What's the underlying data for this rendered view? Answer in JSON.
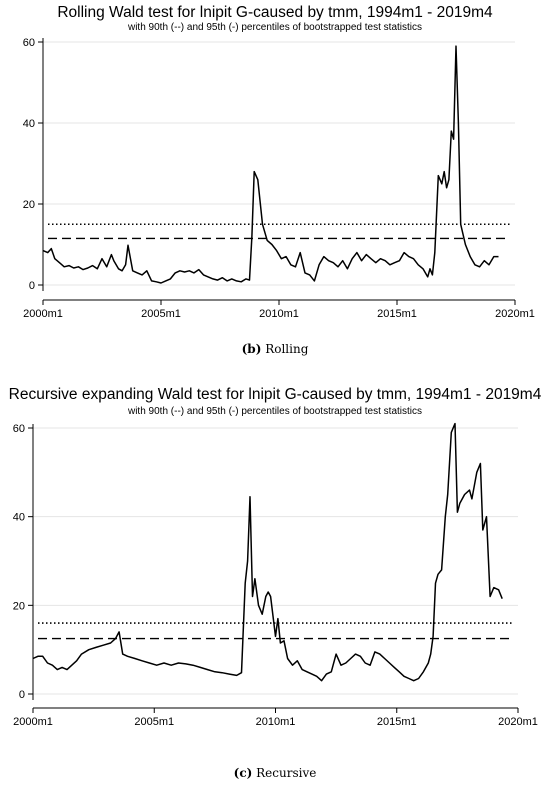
{
  "chart_data": [
    {
      "type": "line",
      "title": "Rolling Wald test for lnipit G-caused by tmm, 1994m1 - 2019m4",
      "subtitle": "with 90th (--) and 95th (-) percentiles of bootstrapped test statistics",
      "caption_label": "(b)",
      "caption_text": " Rolling",
      "xlim": [
        2000.0,
        2020.0
      ],
      "ylim": [
        0,
        60
      ],
      "xticks": [
        {
          "v": 2000.0,
          "label": "2000m1"
        },
        {
          "v": 2005.0,
          "label": "2005m1"
        },
        {
          "v": 2010.0,
          "label": "2010m1"
        },
        {
          "v": 2015.0,
          "label": "2015m1"
        },
        {
          "v": 2020.0,
          "label": "2020m1"
        }
      ],
      "yticks": [
        {
          "v": 0,
          "label": "0"
        },
        {
          "v": 20,
          "label": "20"
        },
        {
          "v": 40,
          "label": "40"
        },
        {
          "v": 60,
          "label": "60"
        }
      ],
      "grid": true,
      "thresholds": [
        {
          "value": 15.0,
          "style": "dotted"
        },
        {
          "value": 11.5,
          "style": "dashed"
        }
      ],
      "series": [
        {
          "x": [
            2000.0,
            2000.2,
            2000.35,
            2000.5,
            2000.7,
            2000.9,
            2001.1,
            2001.3,
            2001.5,
            2001.7,
            2001.9,
            2002.1,
            2002.3,
            2002.5,
            2002.7,
            2002.9,
            2003.0,
            2003.2,
            2003.35,
            2003.5,
            2003.6,
            2003.8,
            2004.0,
            2004.2,
            2004.4,
            2004.6,
            2004.8,
            2005.0,
            2005.2,
            2005.4,
            2005.6,
            2005.8,
            2006.0,
            2006.2,
            2006.4,
            2006.6,
            2006.8,
            2007.0,
            2007.2,
            2007.4,
            2007.6,
            2007.8,
            2008.0,
            2008.2,
            2008.4,
            2008.6,
            2008.75,
            2008.85,
            2008.95,
            2009.1,
            2009.3,
            2009.5,
            2009.7,
            2009.9,
            2010.1,
            2010.3,
            2010.5,
            2010.7,
            2010.9,
            2011.1,
            2011.3,
            2011.5,
            2011.7,
            2011.9,
            2012.1,
            2012.3,
            2012.5,
            2012.7,
            2012.9,
            2013.1,
            2013.3,
            2013.5,
            2013.7,
            2013.9,
            2014.1,
            2014.3,
            2014.5,
            2014.7,
            2014.9,
            2015.1,
            2015.3,
            2015.5,
            2015.7,
            2015.9,
            2016.1,
            2016.3,
            2016.4,
            2016.5,
            2016.6,
            2016.75,
            2016.9,
            2017.0,
            2017.1,
            2017.2,
            2017.3,
            2017.4,
            2017.5,
            2017.6,
            2017.7,
            2017.9,
            2018.1,
            2018.3,
            2018.5,
            2018.7,
            2018.9,
            2019.1,
            2019.3
          ],
          "values": [
            8.5,
            8.0,
            9.0,
            6.5,
            5.5,
            4.5,
            4.8,
            4.2,
            4.5,
            3.8,
            4.2,
            4.8,
            4.0,
            6.5,
            4.5,
            7.5,
            6.0,
            4.0,
            3.5,
            5.0,
            9.8,
            3.5,
            3.0,
            2.5,
            3.5,
            1.0,
            0.8,
            0.5,
            1.0,
            1.5,
            3.0,
            3.5,
            3.2,
            3.5,
            3.0,
            3.8,
            2.5,
            2.0,
            1.5,
            1.2,
            1.8,
            1.0,
            1.5,
            1.0,
            0.8,
            1.5,
            1.2,
            12.0,
            28.0,
            26.0,
            15.0,
            11.0,
            10.0,
            8.5,
            6.5,
            7.0,
            5.0,
            4.5,
            8.0,
            3.0,
            2.5,
            1.0,
            5.0,
            7.0,
            6.0,
            5.5,
            4.5,
            6.0,
            4.0,
            6.5,
            8.0,
            6.0,
            7.5,
            6.5,
            5.5,
            6.5,
            6.0,
            5.0,
            5.5,
            6.0,
            8.0,
            7.0,
            6.5,
            5.0,
            4.0,
            2.0,
            4.0,
            2.5,
            8.0,
            27.0,
            25.0,
            28.0,
            24.0,
            26.0,
            38.0,
            36.0,
            59.0,
            40.0,
            15.0,
            10.0,
            7.0,
            5.0,
            4.5,
            6.0,
            5.0,
            7.0,
            7.0
          ]
        }
      ]
    },
    {
      "type": "line",
      "title": "Recursive expanding Wald test for lnipit G-caused by tmm, 1994m1 - 2019m4",
      "subtitle": "with 90th (--) and 95th (-) percentiles of bootstrapped test statistics",
      "caption_label": "(c)",
      "caption_text": " Recursive",
      "xlim": [
        2000.0,
        2020.0
      ],
      "ylim": [
        0,
        60
      ],
      "xticks": [
        {
          "v": 2000.0,
          "label": "2000m1"
        },
        {
          "v": 2005.0,
          "label": "2005m1"
        },
        {
          "v": 2010.0,
          "label": "2010m1"
        },
        {
          "v": 2015.0,
          "label": "2015m1"
        },
        {
          "v": 2020.0,
          "label": "2020m1"
        }
      ],
      "yticks": [
        {
          "v": 0,
          "label": "0"
        },
        {
          "v": 20,
          "label": "20"
        },
        {
          "v": 40,
          "label": "40"
        },
        {
          "v": 60,
          "label": "60"
        }
      ],
      "grid": true,
      "thresholds": [
        {
          "value": 16.0,
          "style": "dotted"
        },
        {
          "value": 12.5,
          "style": "dashed"
        }
      ],
      "series": [
        {
          "x": [
            2000.0,
            2000.2,
            2000.4,
            2000.6,
            2000.8,
            2001.0,
            2001.2,
            2001.4,
            2001.6,
            2001.8,
            2002.0,
            2002.3,
            2002.6,
            2002.9,
            2003.2,
            2003.4,
            2003.55,
            2003.7,
            2003.9,
            2004.2,
            2004.5,
            2004.8,
            2005.1,
            2005.4,
            2005.7,
            2006.0,
            2006.3,
            2006.6,
            2006.9,
            2007.2,
            2007.5,
            2007.8,
            2008.1,
            2008.4,
            2008.6,
            2008.75,
            2008.85,
            2008.95,
            2009.05,
            2009.15,
            2009.3,
            2009.45,
            2009.6,
            2009.7,
            2009.8,
            2010.0,
            2010.1,
            2010.2,
            2010.35,
            2010.5,
            2010.7,
            2010.9,
            2011.1,
            2011.3,
            2011.5,
            2011.7,
            2011.9,
            2012.1,
            2012.3,
            2012.5,
            2012.7,
            2012.9,
            2013.1,
            2013.3,
            2013.5,
            2013.7,
            2013.9,
            2014.1,
            2014.3,
            2014.5,
            2014.7,
            2014.9,
            2015.1,
            2015.3,
            2015.5,
            2015.7,
            2015.9,
            2016.1,
            2016.3,
            2016.4,
            2016.5,
            2016.6,
            2016.7,
            2016.85,
            2017.0,
            2017.1,
            2017.25,
            2017.4,
            2017.5,
            2017.6,
            2017.8,
            2018.0,
            2018.1,
            2018.3,
            2018.45,
            2018.55,
            2018.7,
            2018.85,
            2019.0,
            2019.2,
            2019.35
          ],
          "values": [
            8.0,
            8.5,
            8.5,
            7.0,
            6.5,
            5.5,
            6.0,
            5.5,
            6.5,
            7.5,
            9.0,
            10.0,
            10.5,
            11.0,
            11.5,
            12.5,
            14.0,
            9.0,
            8.5,
            8.0,
            7.5,
            7.0,
            6.5,
            7.0,
            6.5,
            7.0,
            6.8,
            6.5,
            6.0,
            5.5,
            5.0,
            4.8,
            4.5,
            4.2,
            4.8,
            25.0,
            30.0,
            44.5,
            22.0,
            26.0,
            20.0,
            18.0,
            22.0,
            23.0,
            22.0,
            13.0,
            17.0,
            11.5,
            12.0,
            8.0,
            6.5,
            7.5,
            5.5,
            5.0,
            4.5,
            4.0,
            3.0,
            4.5,
            5.0,
            9.0,
            6.5,
            7.0,
            8.0,
            9.0,
            8.5,
            7.0,
            6.5,
            9.5,
            9.0,
            8.0,
            7.0,
            6.0,
            5.0,
            4.0,
            3.5,
            3.0,
            3.5,
            5.0,
            7.0,
            9.0,
            13.0,
            25.0,
            27.0,
            28.0,
            40.0,
            45.0,
            59.0,
            61.0,
            41.0,
            43.0,
            45.0,
            46.0,
            44.0,
            50.0,
            52.0,
            37.0,
            40.0,
            22.0,
            24.0,
            23.5,
            21.5
          ]
        }
      ]
    }
  ]
}
